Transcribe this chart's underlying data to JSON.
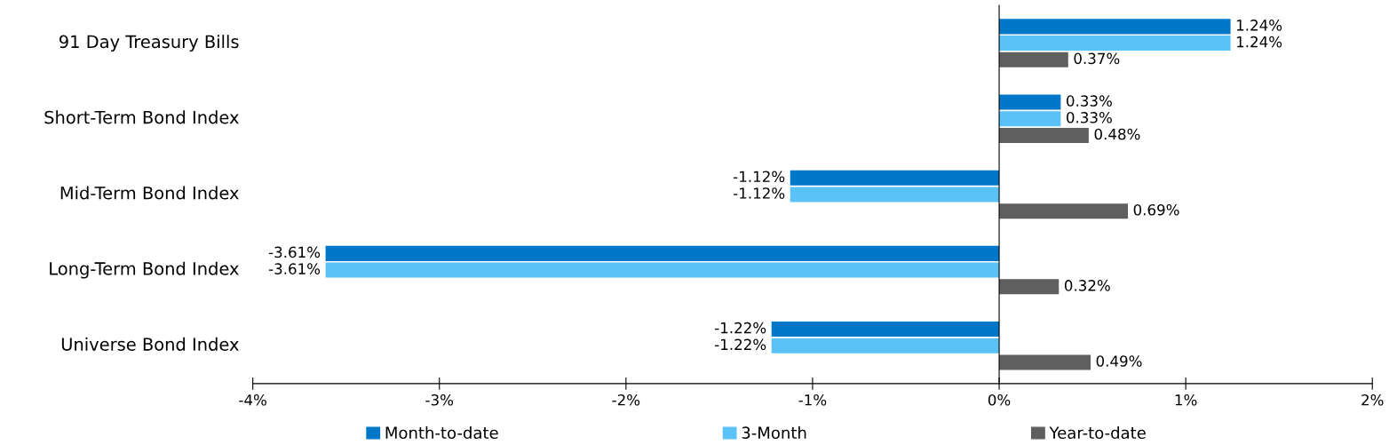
{
  "chart_data": {
    "type": "bar",
    "orientation": "horizontal",
    "categories": [
      "91 Day Treasury Bills",
      "Short-Term Bond Index",
      "Mid-Term Bond Index",
      "Long-Term Bond Index",
      "Universe Bond Index"
    ],
    "series": [
      {
        "name": "Month-to-date",
        "color": "#0077c8",
        "values": [
          1.24,
          0.33,
          -1.12,
          -3.61,
          -1.22
        ],
        "value_labels": [
          "1.24%",
          "0.33%",
          "-1.12%",
          "-3.61%",
          "-1.22%"
        ]
      },
      {
        "name": "3-Month",
        "color": "#5bc2f7",
        "values": [
          1.24,
          0.33,
          -1.12,
          -3.61,
          -1.22
        ],
        "value_labels": [
          "1.24%",
          "0.33%",
          "-1.12%",
          "-3.61%",
          "-1.22%"
        ]
      },
      {
        "name": "Year-to-date",
        "color": "#5f5f5f",
        "values": [
          0.37,
          0.48,
          0.69,
          0.32,
          0.49
        ],
        "value_labels": [
          "0.37%",
          "0.48%",
          "0.69%",
          "0.32%",
          "0.49%"
        ]
      }
    ],
    "xlim": [
      -4,
      2
    ],
    "xticks": [
      {
        "value": -4,
        "label": "-4%"
      },
      {
        "value": -3,
        "label": "-3%"
      },
      {
        "value": -2,
        "label": "-2%"
      },
      {
        "value": -1,
        "label": "-1%"
      },
      {
        "value": 0,
        "label": "0%"
      },
      {
        "value": 1,
        "label": "1%"
      },
      {
        "value": 2,
        "label": "2%"
      }
    ],
    "legend": "bottom"
  }
}
